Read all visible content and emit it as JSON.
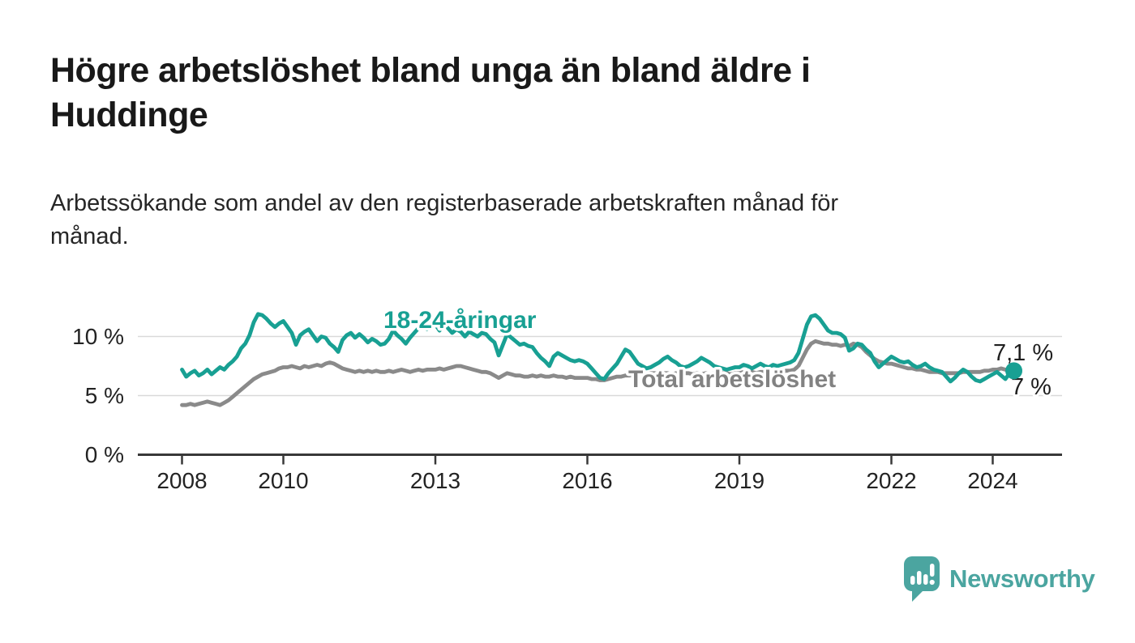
{
  "header": {
    "title_line1": "Högre arbetslöshet bland unga än bland äldre i",
    "title_line2": "Huddinge",
    "subtitle_line1": "Arbetssökande som andel av den registerbaserade arbetskraften månad för",
    "subtitle_line2": "månad."
  },
  "branding": {
    "logo_text": "Newsworthy",
    "logo_icon": "speech-bubble-bar-chart-icon",
    "logo_color": "#4ba5a0"
  },
  "colors": {
    "young_series": "#18a093",
    "total_series": "#8a8a8a",
    "total_label": "#828282",
    "gridline": "#d9d9d9",
    "axis": "#383838",
    "text": "#232323",
    "annotation": "#1f1f1f",
    "background": "#ffffff"
  },
  "chart_data": {
    "type": "line",
    "title": "Högre arbetslöshet bland unga än bland äldre i Huddinge",
    "subtitle": "Arbetssökande som andel av den registerbaserade arbetskraften månad för månad.",
    "frequency": "monthly",
    "x_start": "2008-01",
    "x_end": "2024-06",
    "xlabel": "",
    "ylabel": "",
    "ylim": [
      0,
      13
    ],
    "grid": "horizontal",
    "legend": "inline-labels",
    "x_ticks": [
      2008,
      2010,
      2013,
      2016,
      2019,
      2022,
      2024
    ],
    "y_ticks": [
      {
        "value": 0,
        "label": "0 %"
      },
      {
        "value": 5,
        "label": "5 %"
      },
      {
        "value": 10,
        "label": "10 %"
      }
    ],
    "series": [
      {
        "id": "total",
        "name": "Total arbetslöshet",
        "color": "#8a8a8a",
        "label_color": "#828282",
        "end_value_label": "7 %",
        "values": [
          4.2,
          4.2,
          4.3,
          4.2,
          4.3,
          4.4,
          4.5,
          4.4,
          4.3,
          4.2,
          4.4,
          4.6,
          4.9,
          5.2,
          5.5,
          5.8,
          6.1,
          6.4,
          6.6,
          6.8,
          6.9,
          7.0,
          7.1,
          7.3,
          7.4,
          7.4,
          7.5,
          7.4,
          7.3,
          7.5,
          7.4,
          7.5,
          7.6,
          7.5,
          7.7,
          7.8,
          7.7,
          7.5,
          7.3,
          7.2,
          7.1,
          7.0,
          7.1,
          7.0,
          7.1,
          7.0,
          7.1,
          7.0,
          7.0,
          7.1,
          7.0,
          7.1,
          7.2,
          7.1,
          7.0,
          7.1,
          7.2,
          7.1,
          7.2,
          7.2,
          7.2,
          7.3,
          7.2,
          7.3,
          7.4,
          7.5,
          7.5,
          7.4,
          7.3,
          7.2,
          7.1,
          7.0,
          7.0,
          6.9,
          6.7,
          6.5,
          6.7,
          6.9,
          6.8,
          6.7,
          6.7,
          6.6,
          6.6,
          6.7,
          6.6,
          6.7,
          6.6,
          6.6,
          6.7,
          6.6,
          6.6,
          6.5,
          6.6,
          6.5,
          6.5,
          6.5,
          6.5,
          6.4,
          6.4,
          6.3,
          6.3,
          6.4,
          6.5,
          6.6,
          6.6,
          6.7,
          6.7,
          6.8,
          6.8,
          6.9,
          6.8,
          6.9,
          6.9,
          6.8,
          6.9,
          6.9,
          6.8,
          6.9,
          6.8,
          6.9,
          6.9,
          6.8,
          6.9,
          6.8,
          6.9,
          6.8,
          6.9,
          6.8,
          6.9,
          6.9,
          6.8,
          6.9,
          6.9,
          7.0,
          6.9,
          7.0,
          6.9,
          7.0,
          7.0,
          6.9,
          7.0,
          7.0,
          7.0,
          7.1,
          7.1,
          7.2,
          7.5,
          8.2,
          8.9,
          9.4,
          9.6,
          9.5,
          9.4,
          9.4,
          9.3,
          9.3,
          9.2,
          9.3,
          9.2,
          9.4,
          9.3,
          9.1,
          8.7,
          8.4,
          8.1,
          7.9,
          7.8,
          7.7,
          7.7,
          7.6,
          7.5,
          7.4,
          7.3,
          7.3,
          7.2,
          7.2,
          7.1,
          7.0,
          7.0,
          7.0,
          6.9,
          6.9,
          6.9,
          6.9,
          6.9,
          7.0,
          7.0,
          7.0,
          7.0,
          7.0,
          7.1,
          7.1,
          7.2,
          7.2,
          7.3,
          7.2,
          7.1,
          7.0
        ]
      },
      {
        "id": "young",
        "name": "18-24-åringar",
        "color": "#18a093",
        "label_color": "#18a093",
        "end_value_label": "7,1 %",
        "values": [
          7.2,
          6.6,
          6.9,
          7.1,
          6.7,
          6.9,
          7.2,
          6.8,
          7.1,
          7.4,
          7.2,
          7.6,
          7.9,
          8.3,
          9.0,
          9.4,
          10.1,
          11.2,
          11.9,
          11.8,
          11.5,
          11.1,
          10.8,
          11.1,
          11.3,
          10.8,
          10.3,
          9.3,
          10.1,
          10.4,
          10.6,
          10.1,
          9.6,
          10.0,
          9.9,
          9.4,
          9.1,
          8.7,
          9.7,
          10.1,
          10.3,
          9.9,
          10.2,
          9.9,
          9.5,
          9.8,
          9.6,
          9.3,
          9.4,
          9.8,
          10.5,
          10.1,
          9.8,
          9.4,
          9.9,
          10.3,
          10.7,
          11.0,
          10.6,
          11.1,
          11.0,
          10.5,
          11.1,
          10.7,
          10.3,
          10.6,
          10.4,
          10.0,
          10.4,
          10.2,
          10.0,
          10.3,
          10.2,
          9.8,
          9.5,
          8.4,
          9.3,
          10.2,
          9.9,
          9.6,
          9.3,
          9.4,
          9.2,
          9.1,
          8.6,
          8.2,
          7.9,
          7.5,
          8.3,
          8.6,
          8.4,
          8.2,
          8.0,
          7.9,
          8.0,
          7.9,
          7.7,
          7.3,
          6.9,
          6.5,
          6.4,
          6.9,
          7.3,
          7.7,
          8.3,
          8.9,
          8.7,
          8.2,
          7.7,
          7.5,
          7.3,
          7.4,
          7.6,
          7.8,
          8.1,
          8.3,
          8.0,
          7.8,
          7.5,
          7.4,
          7.5,
          7.7,
          7.9,
          8.2,
          8.0,
          7.8,
          7.5,
          7.4,
          7.3,
          7.2,
          7.3,
          7.4,
          7.4,
          7.6,
          7.5,
          7.3,
          7.5,
          7.7,
          7.5,
          7.4,
          7.6,
          7.5,
          7.6,
          7.7,
          7.8,
          8.0,
          8.6,
          9.8,
          11.0,
          11.7,
          11.8,
          11.5,
          11.0,
          10.5,
          10.3,
          10.3,
          10.2,
          9.9,
          8.8,
          9.0,
          9.4,
          9.3,
          8.9,
          8.6,
          7.9,
          7.4,
          7.7,
          8.0,
          8.3,
          8.1,
          7.9,
          7.8,
          7.9,
          7.6,
          7.4,
          7.5,
          7.7,
          7.4,
          7.2,
          7.1,
          7.0,
          6.6,
          6.2,
          6.5,
          6.9,
          7.2,
          7.0,
          6.6,
          6.3,
          6.2,
          6.4,
          6.6,
          6.8,
          7.0,
          6.7,
          6.4,
          6.9,
          7.1
        ]
      }
    ],
    "end_labels": [
      {
        "series": "young",
        "text": "7,1 %"
      },
      {
        "series": "total",
        "text": "7 %"
      }
    ]
  }
}
